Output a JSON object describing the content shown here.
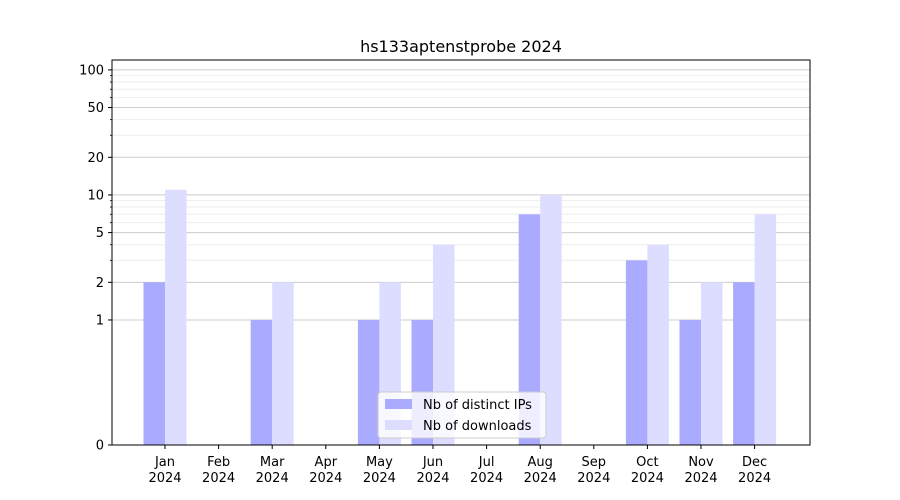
{
  "chart_data": {
    "type": "bar",
    "title": "hs133aptenstprobe 2024",
    "xlabel": "",
    "ylabel": "",
    "y_scale": "symlog",
    "ylim": [
      0,
      120
    ],
    "y_ticks": [
      0,
      1,
      2,
      5,
      10,
      20,
      50,
      100
    ],
    "categories": [
      [
        "Jan",
        "2024"
      ],
      [
        "Feb",
        "2024"
      ],
      [
        "Mar",
        "2024"
      ],
      [
        "Apr",
        "2024"
      ],
      [
        "May",
        "2024"
      ],
      [
        "Jun",
        "2024"
      ],
      [
        "Jul",
        "2024"
      ],
      [
        "Aug",
        "2024"
      ],
      [
        "Sep",
        "2024"
      ],
      [
        "Oct",
        "2024"
      ],
      [
        "Nov",
        "2024"
      ],
      [
        "Dec",
        "2024"
      ]
    ],
    "series": [
      {
        "name": "Nb of distinct IPs",
        "color": "#aaaaff",
        "values": [
          2,
          0,
          1,
          0,
          1,
          1,
          0,
          7,
          0,
          3,
          1,
          2
        ]
      },
      {
        "name": "Nb of downloads",
        "color": "#ddddff",
        "values": [
          11,
          0,
          2,
          0,
          2,
          4,
          0,
          10,
          0,
          4,
          2,
          7
        ]
      }
    ],
    "grid": true,
    "legend_position": "lower center"
  }
}
